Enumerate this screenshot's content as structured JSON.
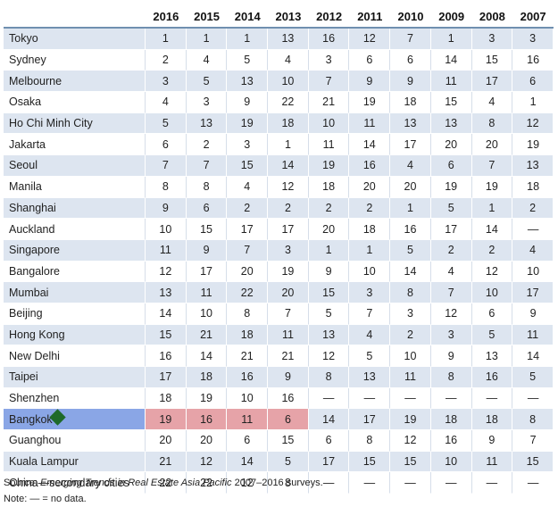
{
  "table": {
    "corner": "",
    "years": [
      "2016",
      "2015",
      "2014",
      "2013",
      "2012",
      "2011",
      "2010",
      "2009",
      "2008",
      "2007"
    ],
    "rows": [
      {
        "city": "Tokyo",
        "ranks": [
          "1",
          "1",
          "1",
          "13",
          "16",
          "12",
          "7",
          "1",
          "3",
          "3"
        ]
      },
      {
        "city": "Sydney",
        "ranks": [
          "2",
          "4",
          "5",
          "4",
          "3",
          "6",
          "6",
          "14",
          "15",
          "16"
        ]
      },
      {
        "city": "Melbourne",
        "ranks": [
          "3",
          "5",
          "13",
          "10",
          "7",
          "9",
          "9",
          "11",
          "17",
          "6"
        ]
      },
      {
        "city": "Osaka",
        "ranks": [
          "4",
          "3",
          "9",
          "22",
          "21",
          "19",
          "18",
          "15",
          "4",
          "1"
        ]
      },
      {
        "city": "Ho Chi Minh City",
        "ranks": [
          "5",
          "13",
          "19",
          "18",
          "10",
          "11",
          "13",
          "13",
          "8",
          "12"
        ]
      },
      {
        "city": "Jakarta",
        "ranks": [
          "6",
          "2",
          "3",
          "1",
          "11",
          "14",
          "17",
          "20",
          "20",
          "19"
        ]
      },
      {
        "city": "Seoul",
        "ranks": [
          "7",
          "7",
          "15",
          "14",
          "19",
          "16",
          "4",
          "6",
          "7",
          "13"
        ]
      },
      {
        "city": "Manila",
        "ranks": [
          "8",
          "8",
          "4",
          "12",
          "18",
          "20",
          "20",
          "19",
          "19",
          "18"
        ]
      },
      {
        "city": "Shanghai",
        "ranks": [
          "9",
          "6",
          "2",
          "2",
          "2",
          "2",
          "1",
          "5",
          "1",
          "2"
        ]
      },
      {
        "city": "Auckland",
        "ranks": [
          "10",
          "15",
          "17",
          "17",
          "20",
          "18",
          "16",
          "17",
          "14",
          "—"
        ]
      },
      {
        "city": "Singapore",
        "ranks": [
          "11",
          "9",
          "7",
          "3",
          "1",
          "1",
          "5",
          "2",
          "2",
          "4"
        ]
      },
      {
        "city": "Bangalore",
        "ranks": [
          "12",
          "17",
          "20",
          "19",
          "9",
          "10",
          "14",
          "4",
          "12",
          "10"
        ]
      },
      {
        "city": "Mumbai",
        "ranks": [
          "13",
          "11",
          "22",
          "20",
          "15",
          "3",
          "8",
          "7",
          "10",
          "17"
        ]
      },
      {
        "city": "Beijing",
        "ranks": [
          "14",
          "10",
          "8",
          "7",
          "5",
          "7",
          "3",
          "12",
          "6",
          "9"
        ]
      },
      {
        "city": "Hong Kong",
        "ranks": [
          "15",
          "21",
          "18",
          "11",
          "13",
          "4",
          "2",
          "3",
          "5",
          "11"
        ]
      },
      {
        "city": "New Delhi",
        "ranks": [
          "16",
          "14",
          "21",
          "21",
          "12",
          "5",
          "10",
          "9",
          "13",
          "14"
        ]
      },
      {
        "city": "Taipei",
        "ranks": [
          "17",
          "18",
          "16",
          "9",
          "8",
          "13",
          "11",
          "8",
          "16",
          "5"
        ]
      },
      {
        "city": "Shenzhen",
        "ranks": [
          "18",
          "19",
          "10",
          "16",
          "—",
          "—",
          "—",
          "—",
          "—",
          "—"
        ]
      },
      {
        "city": "Bangkok",
        "ranks": [
          "19",
          "16",
          "11",
          "6",
          "14",
          "17",
          "19",
          "18",
          "18",
          "8"
        ]
      },
      {
        "city": "Guanghou",
        "ranks": [
          "20",
          "20",
          "6",
          "15",
          "6",
          "8",
          "12",
          "16",
          "9",
          "7"
        ]
      },
      {
        "city": "Kuala Lampur",
        "ranks": [
          "21",
          "12",
          "14",
          "5",
          "17",
          "15",
          "15",
          "10",
          "11",
          "15"
        ]
      },
      {
        "city": "China—secondary cities",
        "ranks": [
          "22",
          "22",
          "12",
          "8",
          "—",
          "—",
          "—",
          "—",
          "—",
          "—"
        ]
      }
    ]
  },
  "highlight": {
    "city": "Bangkok",
    "marker_icon": "diamond-icon",
    "city_color": "#8aa6e6",
    "rank_color": "#e6a3a8",
    "marker_color": "#1f6a2a"
  },
  "footer": {
    "source_prefix": "Source: ",
    "source_title": "Emerging Trends in Real Estate Asia Pacific",
    "source_suffix": " 2007–2016 surveys.",
    "note": "Note: — = no data."
  }
}
